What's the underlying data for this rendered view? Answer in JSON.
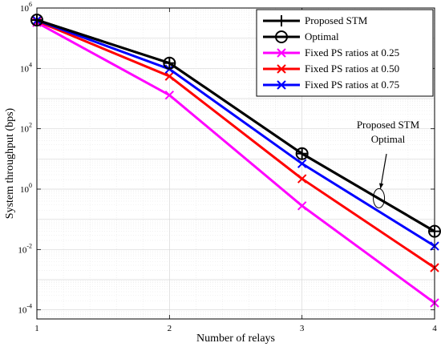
{
  "chart_data": {
    "type": "line",
    "xlabel": "Number of relays",
    "ylabel": "System throughput (bps)",
    "yscale": "log",
    "xlim": [
      1,
      4
    ],
    "ylim": [
      5e-05,
      1000000
    ],
    "grid": true,
    "legend_position": "top-right",
    "x": [
      1,
      2,
      3,
      4
    ],
    "x_ticks": [
      "1",
      "2",
      "3",
      "4"
    ],
    "y_ticks": [
      {
        "value": 0.0001,
        "base": "10",
        "exp": "-4"
      },
      {
        "value": 0.01,
        "base": "10",
        "exp": "-2"
      },
      {
        "value": 1,
        "base": "10",
        "exp": "0"
      },
      {
        "value": 100,
        "base": "10",
        "exp": "2"
      },
      {
        "value": 10000,
        "base": "10",
        "exp": "4"
      },
      {
        "value": 1000000,
        "base": "10",
        "exp": "6"
      }
    ],
    "series": [
      {
        "name": "Proposed STM",
        "color": "#000000",
        "marker": "plus",
        "values": [
          400000,
          15000,
          15,
          0.04
        ]
      },
      {
        "name": "Optimal",
        "color": "#000000",
        "marker": "circle",
        "values": [
          400000,
          15000,
          15,
          0.04
        ]
      },
      {
        "name": "Fixed PS ratios at 0.25",
        "color": "#ff00ff",
        "marker": "x",
        "values": [
          330000,
          1300,
          0.28,
          0.00017
        ]
      },
      {
        "name": "Fixed PS ratios at 0.50",
        "color": "#ff0000",
        "marker": "x",
        "values": [
          370000,
          5500,
          2.2,
          0.0025
        ]
      },
      {
        "name": "Fixed PS ratios at 0.75",
        "color": "#0000ff",
        "marker": "x",
        "values": [
          390000,
          9500,
          7,
          0.013
        ]
      }
    ],
    "annotation": {
      "lines": [
        "Proposed STM",
        "Optimal"
      ],
      "x": 3.58,
      "y": 0.5
    }
  }
}
